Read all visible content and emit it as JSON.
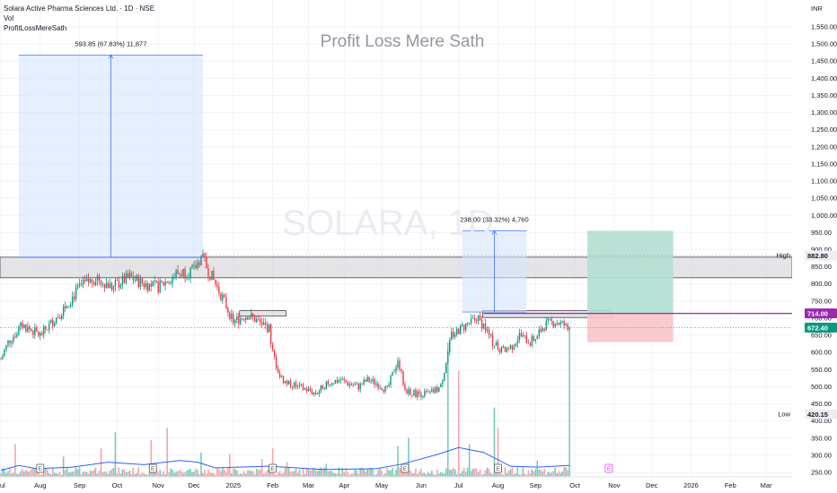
{
  "header": {
    "symbol": "Solara Active Pharma Sciences Ltd. · 1D · NSE",
    "vol": "Vol",
    "indicator": "ProfitLossMereSath"
  },
  "colors": {
    "up": "#089981",
    "down": "#f23645",
    "vol_up": "#7fc8bc",
    "vol_down": "#f7a3a9",
    "vol_ma": "#2962ff",
    "purple": "#9c27b0",
    "price_tag": "#089981",
    "measure_fill": "#d6e4fd",
    "measure_line": "#2962ff",
    "zone": "#cfcfd4",
    "zone_border": "#454545",
    "target": "#b2dfd2",
    "stop": "#f8c5c8",
    "grid": "#f0f3fa"
  },
  "chart_data": {
    "type": "candlestick",
    "title": "Profit Loss Mere Sath",
    "watermark": "SOLARA, 1D",
    "currency": "INR",
    "y_ticks": [
      250,
      300,
      350,
      400,
      450,
      500,
      550,
      600,
      650,
      700,
      750,
      800,
      850,
      900,
      950,
      1000,
      1050,
      1100,
      1150,
      1200,
      1250,
      1300,
      1350,
      1400,
      1450,
      1500,
      1550
    ],
    "y_range": [
      235,
      1590
    ],
    "x_labels": [
      "Jul",
      "Aug",
      "Sep",
      "Oct",
      "Nov",
      "Dec",
      "2025",
      "Feb",
      "Mar",
      "Apr",
      "May",
      "Jun",
      "Jul",
      "Aug",
      "Sep",
      "Oct",
      "Nov",
      "Dec",
      "2026",
      "Feb",
      "Mar"
    ],
    "month_index": [
      0,
      22,
      44,
      65,
      88,
      108,
      130,
      152,
      172,
      192,
      213,
      235,
      256,
      278,
      299,
      321,
      343,
      364,
      386,
      408,
      428
    ],
    "bars_total": 443,
    "price_path": [
      [
        0,
        580
      ],
      [
        4,
        630
      ],
      [
        12,
        680
      ],
      [
        22,
        650
      ],
      [
        34,
        720
      ],
      [
        44,
        790
      ],
      [
        54,
        820
      ],
      [
        62,
        790
      ],
      [
        72,
        820
      ],
      [
        80,
        800
      ],
      [
        88,
        790
      ],
      [
        98,
        830
      ],
      [
        108,
        840
      ],
      [
        112,
        880
      ],
      [
        118,
        820
      ],
      [
        124,
        760
      ],
      [
        130,
        690
      ],
      [
        138,
        710
      ],
      [
        144,
        690
      ],
      [
        150,
        670
      ],
      [
        152,
        600
      ],
      [
        156,
        530
      ],
      [
        160,
        510
      ],
      [
        166,
        500
      ],
      [
        172,
        490
      ],
      [
        176,
        480
      ],
      [
        182,
        510
      ],
      [
        190,
        520
      ],
      [
        194,
        510
      ],
      [
        200,
        500
      ],
      [
        205,
        520
      ],
      [
        210,
        510
      ],
      [
        216,
        490
      ],
      [
        222,
        580
      ],
      [
        226,
        490
      ],
      [
        232,
        480
      ],
      [
        240,
        480
      ],
      [
        246,
        500
      ],
      [
        252,
        650
      ],
      [
        260,
        680
      ],
      [
        266,
        700
      ],
      [
        270,
        680
      ],
      [
        275,
        630
      ],
      [
        280,
        605
      ],
      [
        286,
        620
      ],
      [
        290,
        650
      ],
      [
        296,
        630
      ],
      [
        300,
        650
      ],
      [
        304,
        680
      ],
      [
        310,
        690
      ],
      [
        315,
        680
      ],
      [
        318,
        660
      ]
    ],
    "volume": {
      "base": 6,
      "spikes": [
        [
          8,
          40
        ],
        [
          35,
          25
        ],
        [
          56,
          35
        ],
        [
          64,
          55
        ],
        [
          84,
          45
        ],
        [
          93,
          60
        ],
        [
          112,
          30
        ],
        [
          128,
          28
        ],
        [
          146,
          22
        ],
        [
          152,
          35
        ],
        [
          160,
          18
        ],
        [
          182,
          16
        ],
        [
          222,
          38
        ],
        [
          228,
          48
        ],
        [
          250,
          165
        ],
        [
          256,
          130
        ],
        [
          262,
          40
        ],
        [
          276,
          85
        ],
        [
          278,
          60
        ],
        [
          300,
          20
        ],
        [
          318,
          180
        ]
      ],
      "axis_max": 200
    },
    "volume_ma": [
      [
        0,
        8
      ],
      [
        10,
        14
      ],
      [
        20,
        10
      ],
      [
        40,
        12
      ],
      [
        60,
        18
      ],
      [
        80,
        15
      ],
      [
        100,
        20
      ],
      [
        110,
        18
      ],
      [
        120,
        11
      ],
      [
        150,
        13
      ],
      [
        180,
        9
      ],
      [
        210,
        10
      ],
      [
        225,
        16
      ],
      [
        245,
        28
      ],
      [
        256,
        36
      ],
      [
        270,
        30
      ],
      [
        285,
        13
      ],
      [
        300,
        12
      ],
      [
        318,
        14
      ]
    ],
    "lines": {
      "high": {
        "label": "High",
        "value": "882.80",
        "price": 882.8
      },
      "low": {
        "label": "Low",
        "value": "420.15",
        "price": 420.15
      },
      "resistance": {
        "value": "714.00",
        "price": 714.0
      },
      "last": {
        "value": "672.40",
        "price": 672.4
      }
    },
    "zones": [
      {
        "from_bar": 0,
        "to_bar": 443,
        "top": 878,
        "bottom": 818
      },
      {
        "from_bar": 134,
        "to_bar": 160,
        "top": 722,
        "bottom": 706
      },
      {
        "from_bar": 270,
        "to_bar": 342,
        "top": 722,
        "bottom": 702
      }
    ],
    "measures": [
      {
        "from_bar": 10,
        "to_bar": 113,
        "top": 1468,
        "bottom": 878,
        "label": "593.85 (67.83%) 11,877"
      },
      {
        "from_bar": 258,
        "to_bar": 294,
        "top": 955,
        "bottom": 718,
        "label": "238.00 (33.32%) 4,760"
      }
    ],
    "position": {
      "from_bar": 328,
      "to_bar": 376,
      "target_top": 955,
      "entry": 714,
      "stop": 630
    },
    "events": [
      {
        "bar": 22,
        "label": "E"
      },
      {
        "bar": 85,
        "label": "E"
      },
      {
        "bar": 152,
        "label": "E"
      },
      {
        "bar": 226,
        "label": "E"
      },
      {
        "bar": 278,
        "label": "E"
      },
      {
        "bar": 340,
        "label": "E",
        "future": true
      }
    ]
  }
}
